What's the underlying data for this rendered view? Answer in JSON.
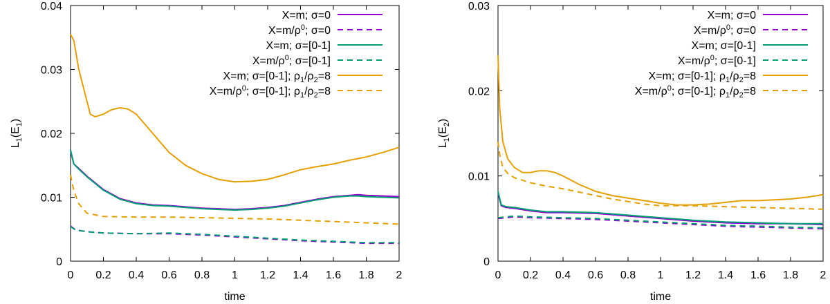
{
  "colors": {
    "purple": "#9400d3",
    "teal": "#009e73",
    "orange": "#e69f00"
  },
  "chart_data": [
    {
      "type": "line",
      "xlabel": "time",
      "ylabel": "L1(E1)",
      "ylabel_base": "L",
      "ylabel_sub1": "1",
      "ylabel_mid": "(E",
      "ylabel_sub2": "1",
      "ylabel_end": ")",
      "xlim": [
        0,
        2
      ],
      "ylim": [
        0,
        0.04
      ],
      "xticks": [
        "0",
        "0.2",
        "0.4",
        "0.6",
        "0.8",
        "1",
        "1.2",
        "1.4",
        "1.6",
        "1.8",
        "2"
      ],
      "yticks": [
        "0",
        "0.01",
        "0.02",
        "0.03",
        "0.04"
      ],
      "series": [
        {
          "name": "X=m; σ=0",
          "color": "#9400d3",
          "dash": false,
          "x": [
            0,
            0.02,
            0.05,
            0.1,
            0.2,
            0.3,
            0.4,
            0.5,
            0.6,
            0.7,
            0.8,
            0.9,
            1.0,
            1.1,
            1.2,
            1.3,
            1.4,
            1.5,
            1.6,
            1.7,
            1.75,
            1.8,
            1.9,
            2.0
          ],
          "y": [
            0.0172,
            0.0152,
            0.0145,
            0.0133,
            0.0112,
            0.0098,
            0.0091,
            0.0088,
            0.0087,
            0.0085,
            0.0083,
            0.0082,
            0.0081,
            0.0082,
            0.0084,
            0.0087,
            0.0092,
            0.0097,
            0.0101,
            0.0103,
            0.0104,
            0.0103,
            0.0102,
            0.0101
          ]
        },
        {
          "name": "X=m/ρ0; σ=0",
          "color": "#9400d3",
          "dash": true,
          "x": [
            0,
            0.03,
            0.1,
            0.2,
            0.4,
            0.6,
            0.8,
            1.0,
            1.2,
            1.4,
            1.6,
            1.8,
            2.0
          ],
          "y": [
            0.0055,
            0.0049,
            0.0046,
            0.0044,
            0.0043,
            0.0043,
            0.0041,
            0.0038,
            0.0035,
            0.0032,
            0.003,
            0.0028,
            0.0028
          ]
        },
        {
          "name": "X=m; σ=[0-1]",
          "color": "#009e73",
          "dash": false,
          "x": [
            0,
            0.02,
            0.05,
            0.1,
            0.2,
            0.3,
            0.4,
            0.5,
            0.6,
            0.7,
            0.8,
            0.9,
            1.0,
            1.1,
            1.2,
            1.3,
            1.4,
            1.5,
            1.6,
            1.7,
            1.75,
            1.8,
            1.9,
            2.0
          ],
          "y": [
            0.0174,
            0.0152,
            0.0144,
            0.0132,
            0.0111,
            0.0097,
            0.009,
            0.0087,
            0.0086,
            0.0084,
            0.0082,
            0.0081,
            0.008,
            0.0081,
            0.0083,
            0.0086,
            0.0091,
            0.0096,
            0.01,
            0.0102,
            0.0102,
            0.0101,
            0.01,
            0.0099
          ]
        },
        {
          "name": "X=m/ρ0; σ=[0-1]",
          "color": "#009e73",
          "dash": true,
          "x": [
            0,
            0.03,
            0.1,
            0.2,
            0.4,
            0.6,
            0.8,
            1.0,
            1.2,
            1.4,
            1.6,
            1.8,
            2.0
          ],
          "y": [
            0.0054,
            0.0049,
            0.0046,
            0.0044,
            0.0043,
            0.0044,
            0.0042,
            0.0039,
            0.0036,
            0.0033,
            0.0031,
            0.0029,
            0.0029
          ]
        },
        {
          "name": "X=m; σ=[0-1]; ρ1/ρ2=8",
          "color": "#e69f00",
          "dash": false,
          "x": [
            0,
            0.02,
            0.05,
            0.1,
            0.12,
            0.15,
            0.2,
            0.25,
            0.3,
            0.35,
            0.4,
            0.5,
            0.6,
            0.7,
            0.8,
            0.9,
            1.0,
            1.1,
            1.2,
            1.3,
            1.4,
            1.5,
            1.6,
            1.7,
            1.8,
            1.9,
            2.0
          ],
          "y": [
            0.0355,
            0.0345,
            0.03,
            0.025,
            0.023,
            0.0226,
            0.023,
            0.0237,
            0.024,
            0.0238,
            0.023,
            0.02,
            0.017,
            0.015,
            0.0137,
            0.0128,
            0.0124,
            0.0125,
            0.0128,
            0.0135,
            0.0143,
            0.0148,
            0.0152,
            0.0158,
            0.0163,
            0.017,
            0.0178
          ]
        },
        {
          "name": "X=m/ρ0; σ=[0-1]; ρ1/ρ2=8",
          "color": "#e69f00",
          "dash": true,
          "x": [
            0,
            0.02,
            0.05,
            0.1,
            0.2,
            0.4,
            0.6,
            0.8,
            1.0,
            1.2,
            1.4,
            1.6,
            1.8,
            2.0
          ],
          "y": [
            0.0135,
            0.011,
            0.009,
            0.0075,
            0.007,
            0.0069,
            0.0069,
            0.0068,
            0.0067,
            0.0066,
            0.0064,
            0.0062,
            0.006,
            0.0058
          ]
        }
      ]
    },
    {
      "type": "line",
      "xlabel": "time",
      "ylabel": "L1(E2)",
      "ylabel_base": "L",
      "ylabel_sub1": "1",
      "ylabel_mid": "(E",
      "ylabel_sub2": "2",
      "ylabel_end": ")",
      "xlim": [
        0,
        2
      ],
      "ylim": [
        0,
        0.03
      ],
      "xticks": [
        "0",
        "0.2",
        "0.4",
        "0.6",
        "0.8",
        "1",
        "1.2",
        "1.4",
        "1.6",
        "1.8",
        "2"
      ],
      "yticks": [
        "0",
        "0.01",
        "0.02",
        "0.03"
      ],
      "series": [
        {
          "name": "X=m; σ=0",
          "color": "#9400d3",
          "dash": false,
          "x": [
            0,
            0.02,
            0.05,
            0.1,
            0.2,
            0.3,
            0.4,
            0.6,
            0.8,
            1.0,
            1.2,
            1.4,
            1.6,
            1.8,
            2.0
          ],
          "y": [
            0.008,
            0.0065,
            0.0063,
            0.0062,
            0.0059,
            0.0057,
            0.0057,
            0.0056,
            0.0053,
            0.005,
            0.0047,
            0.0045,
            0.0044,
            0.0044,
            0.0043
          ]
        },
        {
          "name": "X=m/ρ0; σ=0",
          "color": "#9400d3",
          "dash": true,
          "x": [
            0,
            0.05,
            0.1,
            0.2,
            0.4,
            0.6,
            0.8,
            1.0,
            1.2,
            1.4,
            1.6,
            1.8,
            2.0
          ],
          "y": [
            0.005,
            0.0051,
            0.0052,
            0.0051,
            0.005,
            0.0049,
            0.0047,
            0.0045,
            0.0043,
            0.0041,
            0.004,
            0.0039,
            0.0038
          ]
        },
        {
          "name": "X=m; σ=[0-1]",
          "color": "#009e73",
          "dash": false,
          "x": [
            0,
            0.02,
            0.05,
            0.1,
            0.2,
            0.3,
            0.4,
            0.6,
            0.8,
            1.0,
            1.2,
            1.4,
            1.6,
            1.8,
            2.0
          ],
          "y": [
            0.0082,
            0.0066,
            0.0064,
            0.0063,
            0.006,
            0.0058,
            0.0058,
            0.0057,
            0.0054,
            0.0051,
            0.0048,
            0.0046,
            0.0045,
            0.0044,
            0.0044
          ]
        },
        {
          "name": "X=m/ρ0; σ=[0-1]",
          "color": "#009e73",
          "dash": true,
          "x": [
            0,
            0.05,
            0.1,
            0.2,
            0.4,
            0.6,
            0.8,
            1.0,
            1.2,
            1.4,
            1.6,
            1.8,
            2.0
          ],
          "y": [
            0.0051,
            0.0052,
            0.0053,
            0.0052,
            0.0051,
            0.005,
            0.0048,
            0.0046,
            0.0044,
            0.0042,
            0.0041,
            0.004,
            0.0039
          ]
        },
        {
          "name": "X=m; σ=[0-1]; ρ1/ρ2=8",
          "color": "#e69f00",
          "dash": false,
          "x": [
            0,
            0.01,
            0.03,
            0.06,
            0.1,
            0.15,
            0.2,
            0.25,
            0.3,
            0.35,
            0.4,
            0.5,
            0.6,
            0.7,
            0.8,
            0.9,
            1.0,
            1.1,
            1.2,
            1.3,
            1.4,
            1.5,
            1.6,
            1.7,
            1.8,
            1.9,
            2.0
          ],
          "y": [
            0.0242,
            0.018,
            0.014,
            0.012,
            0.011,
            0.0104,
            0.0104,
            0.0106,
            0.0106,
            0.0104,
            0.01,
            0.009,
            0.0082,
            0.0077,
            0.0074,
            0.0071,
            0.0068,
            0.0066,
            0.0066,
            0.0067,
            0.0069,
            0.0071,
            0.0071,
            0.0072,
            0.0073,
            0.0075,
            0.0078
          ]
        },
        {
          "name": "X=m/ρ0; σ=[0-1]; ρ1/ρ2=8",
          "color": "#e69f00",
          "dash": true,
          "x": [
            0,
            0.01,
            0.03,
            0.06,
            0.1,
            0.2,
            0.3,
            0.4,
            0.5,
            0.6,
            0.7,
            0.8,
            0.9,
            1.0,
            1.2,
            1.4,
            1.6,
            1.8,
            2.0
          ],
          "y": [
            0.014,
            0.0125,
            0.011,
            0.0103,
            0.0098,
            0.0092,
            0.0088,
            0.0085,
            0.0081,
            0.0077,
            0.0073,
            0.007,
            0.0067,
            0.0065,
            0.0065,
            0.0064,
            0.0063,
            0.0062,
            0.0061
          ]
        }
      ]
    }
  ]
}
